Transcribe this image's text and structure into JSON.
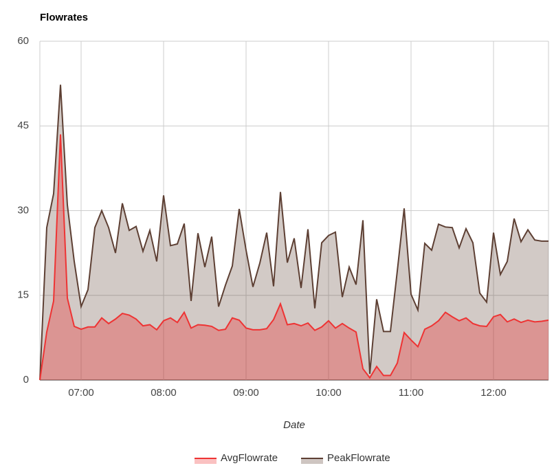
{
  "chart_data": {
    "type": "area",
    "title": "Flowrates",
    "xlabel": "Date",
    "x": [
      "06:30",
      "06:35",
      "06:40",
      "06:45",
      "06:50",
      "06:55",
      "07:00",
      "07:05",
      "07:10",
      "07:15",
      "07:20",
      "07:25",
      "07:30",
      "07:35",
      "07:40",
      "07:45",
      "07:50",
      "07:55",
      "08:00",
      "08:05",
      "08:10",
      "08:15",
      "08:20",
      "08:25",
      "08:30",
      "08:35",
      "08:40",
      "08:45",
      "08:50",
      "08:55",
      "09:00",
      "09:05",
      "09:10",
      "09:15",
      "09:20",
      "09:25",
      "09:30",
      "09:35",
      "09:40",
      "09:45",
      "09:50",
      "09:55",
      "10:00",
      "10:05",
      "10:10",
      "10:15",
      "10:20",
      "10:25",
      "10:30",
      "10:35",
      "10:40",
      "10:45",
      "10:50",
      "10:55",
      "11:00",
      "11:05",
      "11:10",
      "11:15",
      "11:20",
      "11:25",
      "11:30",
      "11:35",
      "11:40",
      "11:45",
      "11:50",
      "11:55",
      "12:00",
      "12:05",
      "12:10",
      "12:15",
      "12:20",
      "12:25",
      "12:30",
      "12:35",
      "12:40"
    ],
    "series": [
      {
        "name": "AvgFlowrate",
        "color": "#ee3333",
        "values": [
          0,
          8.5,
          14,
          43.5,
          14.5,
          9.5,
          9,
          9.4,
          9.4,
          11,
          10,
          10.8,
          11.8,
          11.5,
          10.8,
          9.6,
          9.8,
          8.9,
          10.5,
          11,
          10.2,
          12,
          9.2,
          9.8,
          9.7,
          9.5,
          8.8,
          9,
          11,
          10.6,
          9.2,
          8.9,
          8.9,
          9.1,
          10.7,
          13.5,
          9.8,
          10,
          9.6,
          10.1,
          8.8,
          9.4,
          10.5,
          9.2,
          10,
          9.2,
          8.5,
          2,
          0.4,
          2.4,
          0.8,
          0.8,
          3,
          8.4,
          7.1,
          5.9,
          9,
          9.6,
          10.5,
          12,
          11.2,
          10.5,
          11,
          10,
          9.6,
          9.5,
          11.2,
          11.6,
          10.3,
          10.8,
          10.2,
          10.6,
          10.3,
          10.4,
          10.6
        ]
      },
      {
        "name": "PeakFlowrate",
        "color": "#5d3f33",
        "values": [
          0,
          27,
          33,
          52.3,
          31,
          21,
          13,
          16,
          27,
          30,
          27,
          22.5,
          31.3,
          26.5,
          27.2,
          22.8,
          26.5,
          21,
          32.7,
          23.8,
          24.1,
          27.7,
          14,
          26,
          20,
          25.4,
          13,
          16.8,
          20.2,
          30.3,
          23,
          16.5,
          20.7,
          26.1,
          16.6,
          33.3,
          20.8,
          25.1,
          16.3,
          26.7,
          12.7,
          24.3,
          25.6,
          26.2,
          14.7,
          20,
          16.9,
          28.3,
          1.1,
          14.3,
          8.6,
          8.6,
          19.3,
          30.4,
          15.2,
          12.4,
          24.2,
          23,
          27.6,
          27.1,
          27,
          23.4,
          26.8,
          24.3,
          15.4,
          13.8,
          26.1,
          18.7,
          21,
          28.6,
          24.5,
          26.6,
          24.8,
          24.6,
          24.6
        ]
      }
    ],
    "xlim": [
      "06:30",
      "12:40"
    ],
    "xticks": [
      "07:00",
      "08:00",
      "09:00",
      "10:00",
      "11:00",
      "12:00"
    ],
    "ylim": [
      0,
      60
    ],
    "yticks": [
      0,
      15,
      30,
      45,
      60
    ],
    "grid": true,
    "legend": "bottom"
  }
}
